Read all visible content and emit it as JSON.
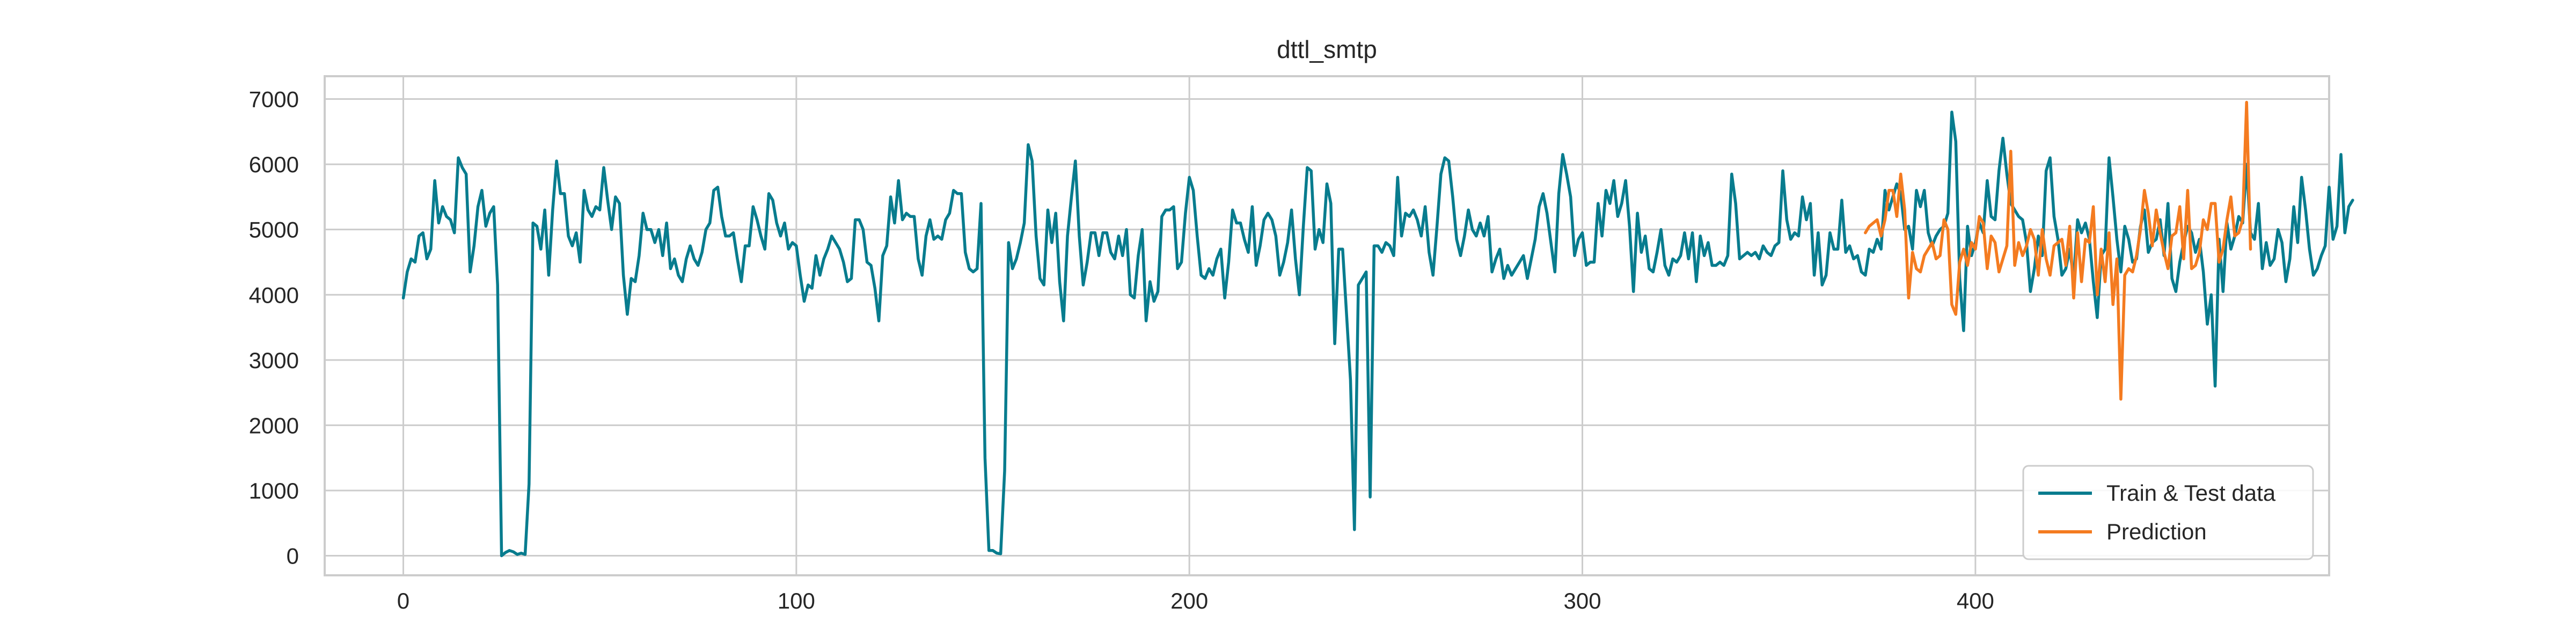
{
  "chart_data": {
    "type": "line",
    "title": "dttl_smtp",
    "xlabel": "",
    "ylabel": "",
    "xlim": [
      -20,
      490
    ],
    "ylim": [
      -300,
      7350
    ],
    "xticks": [
      0,
      100,
      200,
      300,
      400
    ],
    "yticks": [
      0,
      1000,
      2000,
      3000,
      4000,
      5000,
      6000,
      7000
    ],
    "grid": true,
    "legend_position": "lower-right",
    "series": [
      {
        "name": "Train & Test data",
        "color": "#087c8e",
        "x_start": 0,
        "values": [
          3950,
          4350,
          4550,
          4500,
          4900,
          4950,
          4550,
          4700,
          5750,
          5100,
          5350,
          5200,
          5150,
          4950,
          6100,
          5950,
          5850,
          4350,
          4750,
          5350,
          5600,
          5050,
          5250,
          5350,
          4150,
          0,
          50,
          80,
          60,
          20,
          40,
          20,
          1100,
          5100,
          5050,
          4700,
          5300,
          4300,
          5300,
          6050,
          5550,
          5550,
          4900,
          4750,
          4950,
          4500,
          5600,
          5300,
          5200,
          5350,
          5300,
          5950,
          5450,
          5000,
          5500,
          5400,
          4300,
          3700,
          4250,
          4200,
          4600,
          5250,
          5000,
          5000,
          4800,
          5000,
          4600,
          5100,
          4400,
          4550,
          4300,
          4200,
          4550,
          4750,
          4550,
          4450,
          4650,
          5000,
          5100,
          5600,
          5650,
          5200,
          4900,
          4900,
          4950,
          4550,
          4200,
          4750,
          4750,
          5350,
          5150,
          4900,
          4700,
          5550,
          5450,
          5100,
          4900,
          5100,
          4700,
          4800,
          4750,
          4300,
          3900,
          4150,
          4100,
          4600,
          4300,
          4550,
          4700,
          4900,
          4800,
          4700,
          4500,
          4200,
          4250,
          5150,
          5150,
          5000,
          4500,
          4450,
          4100,
          3600,
          4600,
          4750,
          5500,
          5100,
          5750,
          5150,
          5250,
          5200,
          5200,
          4550,
          4300,
          4900,
          5150,
          4850,
          4900,
          4850,
          5150,
          5250,
          5600,
          5550,
          5550,
          4650,
          4400,
          4350,
          4400,
          5400,
          1500,
          80,
          80,
          40,
          30,
          1300,
          4800,
          4400,
          4550,
          4800,
          5100,
          6300,
          6050,
          4900,
          4250,
          4150,
          5300,
          4800,
          5250,
          4200,
          3600,
          4900,
          5500,
          6050,
          4900,
          4150,
          4500,
          4950,
          4950,
          4600,
          4950,
          4950,
          4650,
          4550,
          4900,
          4600,
          5000,
          4000,
          3950,
          4600,
          5000,
          3600,
          4200,
          3900,
          4050,
          5200,
          5300,
          5300,
          5350,
          4400,
          4500,
          5250,
          5800,
          5600,
          4900,
          4300,
          4250,
          4400,
          4300,
          4550,
          4700,
          3950,
          4500,
          5300,
          5100,
          5100,
          4850,
          4650,
          5350,
          4450,
          4750,
          5150,
          5250,
          5150,
          4900,
          4300,
          4500,
          4800,
          5300,
          4550,
          4000,
          5050,
          5950,
          5900,
          4700,
          5000,
          4800,
          5700,
          5400,
          3250,
          4700,
          4700,
          3700,
          2700,
          400,
          4150,
          4250,
          4350,
          900,
          4750,
          4750,
          4650,
          4800,
          4750,
          4600,
          5800,
          4900,
          5250,
          5200,
          5300,
          5150,
          4900,
          5350,
          4650,
          4300,
          5050,
          5850,
          6100,
          6050,
          5500,
          4850,
          4600,
          4900,
          5300,
          5000,
          4900,
          5100,
          4900,
          5200,
          4350,
          4550,
          4700,
          4250,
          4450,
          4300,
          4400,
          4500,
          4600,
          4250,
          4550,
          4850,
          5350,
          5550,
          5250,
          4800,
          4350,
          5550,
          6150,
          5850,
          5500,
          4600,
          4850,
          4950,
          4450,
          4500,
          4500,
          5400,
          4900,
          5600,
          5400,
          5750,
          5200,
          5400,
          5750,
          5050,
          4050,
          5250,
          4650,
          4900,
          4400,
          4350,
          4650,
          5000,
          4450,
          4300,
          4550,
          4500,
          4600,
          4950,
          4550,
          4950,
          4200,
          4900,
          4600,
          4800,
          4450,
          4450,
          4500,
          4450,
          4600,
          5850,
          5400,
          4550,
          4600,
          4650,
          4600,
          4650,
          4550,
          4750,
          4650,
          4600,
          4750,
          4800,
          5900,
          5150,
          4850,
          4950,
          4900,
          5500,
          5150,
          5400,
          4300,
          4950,
          4150,
          4300,
          4950,
          4700,
          4700,
          5450,
          4650,
          4750,
          4550,
          4600,
          4350,
          4300,
          4700,
          4650,
          4850,
          4700,
          5600,
          5300,
          5500,
          5700,
          5550,
          5000,
          5050,
          4700,
          5600,
          5350,
          5600,
          4950,
          4750,
          4900,
          5000,
          5050,
          5250,
          6800,
          6350,
          4250,
          3450,
          5050,
          4600,
          4800,
          5100,
          4950,
          5750,
          5200,
          5150,
          5900,
          6400,
          5850,
          5400,
          5300,
          5200,
          5150,
          4800,
          4050,
          4400,
          4900,
          4600,
          5900,
          6100,
          5200,
          4850,
          4300,
          4400,
          4700,
          4250,
          5150,
          4950,
          5100,
          4850,
          4200,
          3650,
          4600,
          4700,
          6100,
          5500,
          4850,
          4350,
          5050,
          4850,
          4500,
          4550,
          5050,
          5300,
          4650,
          4800,
          4850,
          5150,
          4600,
          5400,
          4250,
          4050,
          4500,
          4800,
          5050,
          4950,
          4650,
          4850,
          4350,
          3550,
          4000,
          2600,
          4850,
          4050,
          5100,
          4700,
          4900,
          5200,
          5100,
          6000,
          4950,
          4850,
          5400,
          4400,
          4800,
          4450,
          4550,
          5000,
          4800,
          4200,
          4550,
          5350,
          4800,
          5800,
          5300,
          4700,
          4300,
          4400,
          4600,
          4750,
          5650,
          4850,
          5050,
          6150,
          4950,
          5350,
          5450
        ]
      },
      {
        "name": "Prediction",
        "color": "#f47b20",
        "x_start": 372,
        "values": [
          4950,
          5050,
          5100,
          5150,
          4900,
          5150,
          5600,
          5600,
          5200,
          5850,
          5300,
          3950,
          4650,
          4400,
          4350,
          4600,
          4700,
          4800,
          4550,
          4600,
          5150,
          5000,
          3850,
          3700,
          4500,
          4700,
          4450,
          4800,
          4700,
          5200,
          5100,
          4400,
          4900,
          4800,
          4350,
          4550,
          4750,
          6200,
          4450,
          4800,
          4600,
          4750,
          5000,
          4850,
          4300,
          5000,
          4550,
          4300,
          4750,
          4800,
          4850,
          4450,
          5050,
          3950,
          4950,
          4200,
          4850,
          4800,
          5350,
          4000,
          4700,
          4200,
          4950,
          3850,
          4550,
          2400,
          4300,
          4400,
          4350,
          4600,
          5000,
          5600,
          5250,
          4750,
          5300,
          4950,
          4650,
          4400,
          4900,
          4950,
          5350,
          4550,
          5600,
          4400,
          4450,
          4650,
          5150,
          5000,
          5400,
          5400,
          4500,
          4700,
          5150,
          5500,
          4900,
          4950,
          5150,
          6950,
          4700
        ]
      }
    ]
  }
}
